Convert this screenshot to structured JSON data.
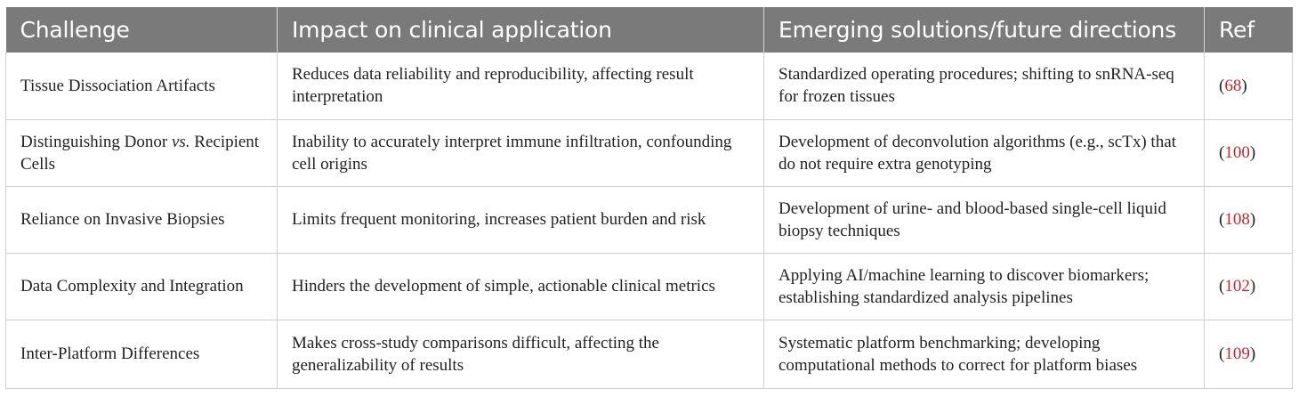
{
  "table": {
    "headers": [
      "Challenge",
      "Impact on clinical application",
      "Emerging solutions/future directions",
      "Ref"
    ],
    "rows": [
      {
        "challenge": "Tissue Dissociation Artifacts",
        "impact": "Reduces data reliability and reproducibility, affecting result interpretation",
        "solution": "Standardized operating procedures; shifting to snRNA-seq for frozen tissues",
        "ref": "68"
      },
      {
        "challenge_pre": "Distinguishing Donor ",
        "challenge_italic": "vs.",
        "challenge_post": " Recipient Cells",
        "impact": "Inability to accurately interpret immune infiltration, confounding cell origins",
        "solution": "Development of deconvolution algorithms (e.g., scTx) that do not require extra genotyping",
        "ref": "100"
      },
      {
        "challenge": "Reliance on Invasive Biopsies",
        "impact": "Limits frequent monitoring, increases patient burden and risk",
        "solution": "Development of urine- and blood-based single-cell liquid biopsy techniques",
        "ref": "108"
      },
      {
        "challenge": "Data Complexity and Integration",
        "impact": "Hinders the development of simple, actionable clinical metrics",
        "solution": "Applying AI/machine learning to discover biomarkers; establishing standardized analysis pipelines",
        "ref": "102"
      },
      {
        "challenge": "Inter-Platform Differences",
        "impact": "Makes cross-study comparisons difficult, affecting the generalizability of results",
        "solution": "Systematic platform benchmarking; developing computational methods to correct for platform biases",
        "ref": "109"
      }
    ]
  },
  "colors": {
    "header_bg": "#7a7a7a",
    "header_text": "#ffffff",
    "ref_link": "#c0282e"
  }
}
